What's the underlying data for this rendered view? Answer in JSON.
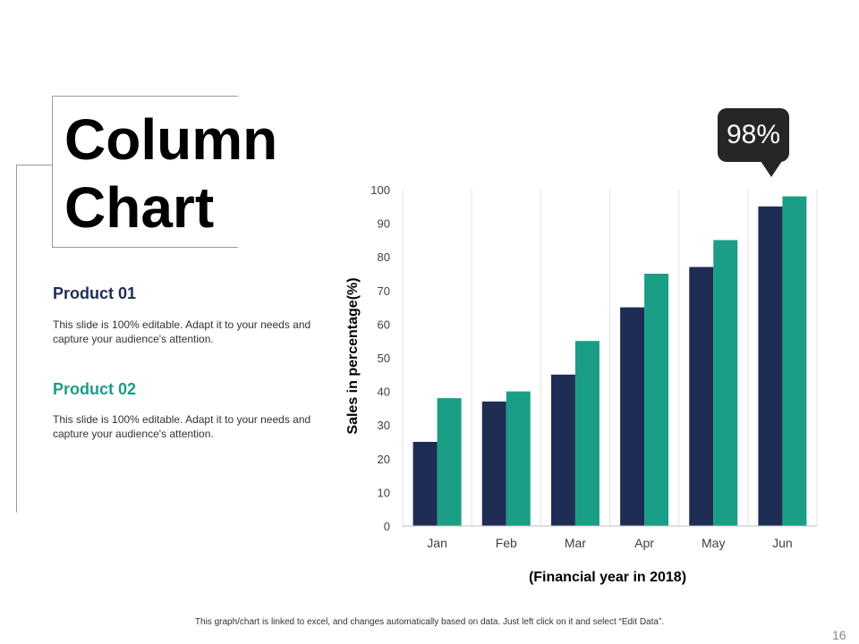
{
  "slide": {
    "title_line1": "Column",
    "title_line2": "Chart",
    "products": [
      {
        "heading": "Product 01",
        "text": "This slide is 100% editable. Adapt it to your needs and capture your audience's attention.",
        "color": "#1f2d55"
      },
      {
        "heading": "Product 02",
        "text": "This slide is 100% editable. Adapt it to your needs and capture your audience's attention.",
        "color": "#1a9e85"
      }
    ],
    "callout": "98%",
    "footer": "This graph/chart is linked to excel, and changes automatically based on data. Just left click on it and select “Edit Data”.",
    "page_number": "16"
  },
  "chart_data": {
    "type": "bar",
    "categories": [
      "Jan",
      "Feb",
      "Mar",
      "Apr",
      "May",
      "Jun"
    ],
    "series": [
      {
        "values": [
          25,
          37,
          45,
          65,
          77,
          95
        ],
        "color": "#1f2d55"
      },
      {
        "values": [
          38,
          40,
          55,
          75,
          85,
          98
        ],
        "color": "#1a9e85"
      }
    ],
    "xlabel": "(Financial year in 2018)",
    "ylabel": "Sales in percentage(%)",
    "ylim": [
      0,
      100
    ],
    "yticks": [
      0,
      10,
      20,
      30,
      40,
      50,
      60,
      70,
      80,
      90,
      100
    ],
    "grid": "vertical category separators"
  }
}
